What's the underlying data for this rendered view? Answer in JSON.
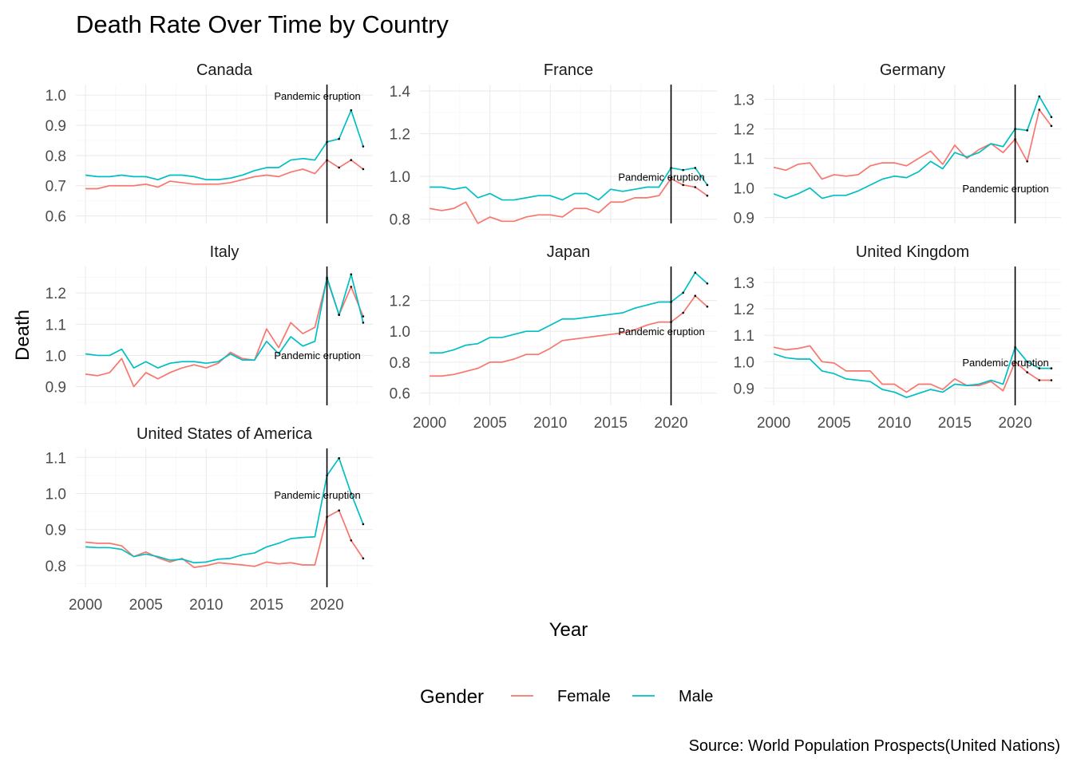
{
  "title": "Death Rate Over Time by Country",
  "caption": "Source: World Population Prospects(United Nations)",
  "chart_data": {
    "type": "line",
    "facet_by": "country",
    "xlabel": "Year",
    "ylabel": "Death",
    "x_ticks": [
      2000,
      2005,
      2010,
      2015,
      2020
    ],
    "xlim": [
      1999.2,
      2023.8
    ],
    "grid": true,
    "scales": "free_y",
    "legend": {
      "title": "Gender",
      "position": "bottom",
      "entries": [
        {
          "name": "Female",
          "color": "#F8766D"
        },
        {
          "name": "Male",
          "color": "#00BFC4"
        }
      ]
    },
    "reference_line": {
      "x": 2020,
      "label": "Pandemic eruption",
      "color": "#000000"
    },
    "years": [
      2000,
      2001,
      2002,
      2003,
      2004,
      2005,
      2006,
      2007,
      2008,
      2009,
      2010,
      2011,
      2012,
      2013,
      2014,
      2015,
      2016,
      2017,
      2018,
      2019,
      2020,
      2021,
      2022,
      2023
    ],
    "facets": [
      {
        "country": "Canada",
        "ylim": [
          0.575,
          1.035
        ],
        "y_ticks": [
          0.6,
          0.7,
          0.8,
          0.9,
          1.0
        ],
        "y_tick_labels": [
          "0.6",
          "0.7",
          "0.8",
          "0.9",
          "1.0"
        ],
        "annotation_y": 0.995,
        "series": [
          {
            "name": "Female",
            "values": [
              0.69,
              0.69,
              0.7,
              0.7,
              0.7,
              0.705,
              0.695,
              0.715,
              0.71,
              0.705,
              0.705,
              0.705,
              0.71,
              0.72,
              0.73,
              0.735,
              0.73,
              0.745,
              0.755,
              0.74,
              0.785,
              0.76,
              0.785,
              0.755
            ]
          },
          {
            "name": "Male",
            "values": [
              0.735,
              0.73,
              0.73,
              0.735,
              0.73,
              0.73,
              0.72,
              0.735,
              0.735,
              0.73,
              0.72,
              0.72,
              0.725,
              0.735,
              0.75,
              0.76,
              0.76,
              0.785,
              0.79,
              0.785,
              0.845,
              0.855,
              0.95,
              0.83
            ]
          }
        ]
      },
      {
        "country": "France",
        "ylim": [
          0.78,
          1.43
        ],
        "y_ticks": [
          0.8,
          1.0,
          1.2,
          1.4
        ],
        "y_tick_labels": [
          "0.8",
          "1.0",
          "1.2",
          "1.4"
        ],
        "annotation_y": 0.995,
        "series": [
          {
            "name": "Female",
            "values": [
              0.85,
              0.84,
              0.85,
              0.88,
              0.78,
              0.81,
              0.79,
              0.79,
              0.81,
              0.82,
              0.82,
              0.81,
              0.85,
              0.85,
              0.83,
              0.88,
              0.88,
              0.9,
              0.9,
              0.91,
              0.99,
              0.96,
              0.95,
              0.91
            ]
          },
          {
            "name": "Male",
            "values": [
              0.95,
              0.95,
              0.94,
              0.95,
              0.9,
              0.92,
              0.89,
              0.89,
              0.9,
              0.91,
              0.91,
              0.89,
              0.92,
              0.92,
              0.89,
              0.94,
              0.93,
              0.94,
              0.95,
              0.95,
              1.04,
              1.03,
              1.04,
              0.96
            ]
          }
        ]
      },
      {
        "country": "Germany",
        "ylim": [
          0.88,
          1.35
        ],
        "y_ticks": [
          0.9,
          1.0,
          1.1,
          1.2,
          1.3
        ],
        "y_tick_labels": [
          "0.9",
          "1.0",
          "1.1",
          "1.2",
          "1.3"
        ],
        "annotation_y": 0.996,
        "series": [
          {
            "name": "Female",
            "values": [
              1.07,
              1.06,
              1.08,
              1.085,
              1.03,
              1.045,
              1.04,
              1.045,
              1.075,
              1.085,
              1.085,
              1.075,
              1.1,
              1.125,
              1.08,
              1.145,
              1.1,
              1.13,
              1.15,
              1.12,
              1.165,
              1.09,
              1.265,
              1.21
            ]
          },
          {
            "name": "Male",
            "values": [
              0.98,
              0.965,
              0.98,
              1.0,
              0.965,
              0.975,
              0.975,
              0.99,
              1.01,
              1.03,
              1.04,
              1.035,
              1.055,
              1.09,
              1.065,
              1.12,
              1.105,
              1.12,
              1.15,
              1.14,
              1.2,
              1.195,
              1.31,
              1.24
            ]
          }
        ]
      },
      {
        "country": "Italy",
        "ylim": [
          0.84,
          1.285
        ],
        "y_ticks": [
          0.9,
          1.0,
          1.1,
          1.2
        ],
        "y_tick_labels": [
          "0.9",
          "1.0",
          "1.1",
          "1.2"
        ],
        "annotation_y": 0.998,
        "series": [
          {
            "name": "Female",
            "values": [
              0.94,
              0.935,
              0.945,
              0.99,
              0.9,
              0.945,
              0.925,
              0.945,
              0.96,
              0.97,
              0.96,
              0.975,
              1.01,
              0.99,
              0.985,
              1.085,
              1.025,
              1.105,
              1.07,
              1.09,
              1.245,
              1.13,
              1.22,
              1.125
            ]
          },
          {
            "name": "Male",
            "values": [
              1.005,
              1.0,
              1.0,
              1.02,
              0.96,
              0.98,
              0.96,
              0.975,
              0.98,
              0.98,
              0.975,
              0.98,
              1.005,
              0.985,
              0.985,
              1.045,
              1.005,
              1.06,
              1.03,
              1.045,
              1.25,
              1.13,
              1.26,
              1.105
            ]
          }
        ]
      },
      {
        "country": "Japan",
        "ylim": [
          0.52,
          1.42
        ],
        "y_ticks": [
          0.6,
          0.8,
          1.0,
          1.2
        ],
        "y_tick_labels": [
          "0.6",
          "0.8",
          "1.0",
          "1.2"
        ],
        "annotation_y": 0.995,
        "series": [
          {
            "name": "Female",
            "values": [
              0.71,
              0.71,
              0.72,
              0.74,
              0.76,
              0.8,
              0.8,
              0.82,
              0.85,
              0.85,
              0.89,
              0.94,
              0.95,
              0.96,
              0.97,
              0.98,
              0.99,
              1.01,
              1.04,
              1.06,
              1.06,
              1.12,
              1.23,
              1.16
            ]
          },
          {
            "name": "Male",
            "values": [
              0.86,
              0.86,
              0.88,
              0.91,
              0.92,
              0.96,
              0.96,
              0.98,
              1.0,
              1.0,
              1.04,
              1.08,
              1.08,
              1.09,
              1.1,
              1.11,
              1.12,
              1.15,
              1.17,
              1.19,
              1.19,
              1.25,
              1.38,
              1.31
            ]
          }
        ]
      },
      {
        "country": "United Kingdom",
        "ylim": [
          0.835,
          1.36
        ],
        "y_ticks": [
          0.9,
          1.0,
          1.1,
          1.2,
          1.3
        ],
        "y_tick_labels": [
          "0.9",
          "1.0",
          "1.1",
          "1.2",
          "1.3"
        ],
        "annotation_y": 0.995,
        "series": [
          {
            "name": "Female",
            "values": [
              1.055,
              1.045,
              1.05,
              1.06,
              1.0,
              0.995,
              0.965,
              0.965,
              0.965,
              0.915,
              0.915,
              0.885,
              0.915,
              0.915,
              0.895,
              0.935,
              0.91,
              0.91,
              0.925,
              0.89,
              1.0,
              0.96,
              0.93,
              0.93
            ]
          },
          {
            "name": "Male",
            "values": [
              1.03,
              1.015,
              1.01,
              1.01,
              0.965,
              0.955,
              0.935,
              0.93,
              0.925,
              0.895,
              0.885,
              0.865,
              0.88,
              0.895,
              0.885,
              0.915,
              0.91,
              0.915,
              0.93,
              0.915,
              1.055,
              1.0,
              0.975,
              0.975
            ]
          }
        ]
      },
      {
        "country": "United States of America",
        "ylim": [
          0.74,
          1.125
        ],
        "y_ticks": [
          0.8,
          0.9,
          1.0,
          1.1
        ],
        "y_tick_labels": [
          "0.8",
          "0.9",
          "1.0",
          "1.1"
        ],
        "annotation_y": 0.994,
        "series": [
          {
            "name": "Female",
            "values": [
              0.865,
              0.862,
              0.862,
              0.855,
              0.825,
              0.838,
              0.822,
              0.81,
              0.82,
              0.795,
              0.8,
              0.808,
              0.805,
              0.802,
              0.798,
              0.81,
              0.805,
              0.808,
              0.802,
              0.802,
              0.935,
              0.953,
              0.87,
              0.82
            ]
          },
          {
            "name": "Male",
            "values": [
              0.852,
              0.85,
              0.85,
              0.845,
              0.825,
              0.832,
              0.825,
              0.815,
              0.818,
              0.808,
              0.81,
              0.818,
              0.82,
              0.83,
              0.835,
              0.852,
              0.862,
              0.875,
              0.878,
              0.88,
              1.05,
              1.098,
              1.0,
              0.915
            ]
          }
        ]
      }
    ]
  }
}
